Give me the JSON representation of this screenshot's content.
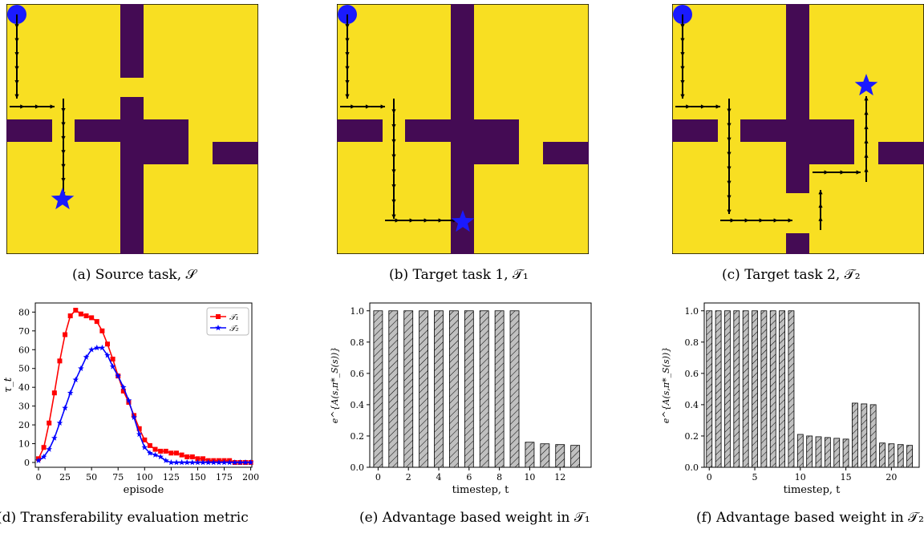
{
  "captions": {
    "a": "(a) Source task, 𝒮",
    "b": "(b) Target task 1, 𝒯₁",
    "c": "(c) Target task 2, 𝒯₂",
    "d": "(d) Transferability evaluation metric",
    "e": "(e) Advantage based weight in 𝒯₁",
    "f": "(f) Advantage based weight in 𝒯₂"
  },
  "colors": {
    "floor": "#f8df22",
    "wall": "#440b54",
    "agent": "#1a1aff",
    "arrow": "#000000",
    "bar": "#c0c0c0",
    "t1": "#ff0000",
    "t2": "#0000ff"
  },
  "icons": {
    "start": "blue-circle",
    "goal": "blue-star"
  },
  "chart_data": [
    {
      "type": "line",
      "xlabel": "episode",
      "ylabel": "τ_t",
      "xlim": [
        0,
        200
      ],
      "ylim": [
        0,
        80
      ],
      "xticks": [
        0,
        25,
        50,
        75,
        100,
        125,
        150,
        175,
        200
      ],
      "yticks": [
        0,
        10,
        20,
        30,
        40,
        50,
        60,
        70,
        80
      ],
      "legend": "top-right",
      "grid": false,
      "series": [
        {
          "name": "𝒯₁",
          "marker": "square",
          "x": [
            0,
            5,
            10,
            15,
            20,
            25,
            30,
            35,
            40,
            45,
            50,
            55,
            60,
            65,
            70,
            75,
            80,
            85,
            90,
            95,
            100,
            105,
            110,
            115,
            120,
            125,
            130,
            135,
            140,
            145,
            150,
            155,
            160,
            165,
            170,
            175,
            180,
            185,
            190,
            195,
            200
          ],
          "values": [
            2,
            8,
            21,
            37,
            54,
            68,
            78,
            81,
            79,
            78,
            77,
            75,
            70,
            63,
            55,
            46,
            38,
            32,
            25,
            18,
            12,
            9,
            7,
            6,
            6,
            5,
            5,
            4,
            3,
            3,
            2,
            2,
            1,
            1,
            1,
            1,
            1,
            0,
            0,
            0,
            0
          ]
        },
        {
          "name": "𝒯₂",
          "marker": "star",
          "x": [
            0,
            5,
            10,
            15,
            20,
            25,
            30,
            35,
            40,
            45,
            50,
            55,
            60,
            65,
            70,
            75,
            80,
            85,
            90,
            95,
            100,
            105,
            110,
            115,
            120,
            125,
            130,
            135,
            140,
            145,
            150,
            155,
            160,
            165,
            170,
            175,
            180,
            185,
            190,
            195,
            200
          ],
          "values": [
            1,
            3,
            7,
            13,
            21,
            29,
            37,
            44,
            50,
            56,
            60,
            61,
            61,
            57,
            51,
            46,
            40,
            33,
            24,
            15,
            8,
            5,
            4,
            3,
            1,
            0,
            0,
            0,
            0,
            0,
            0,
            0,
            0,
            0,
            0,
            0,
            0,
            0,
            0,
            0,
            0
          ]
        }
      ]
    },
    {
      "type": "bar",
      "xlabel": "timestep, t",
      "ylabel": "e^{A(s,π*_S(s))}",
      "xticks": [
        0,
        2,
        4,
        6,
        8,
        10,
        12
      ],
      "yticks": [
        0.0,
        0.2,
        0.4,
        0.6,
        0.8,
        1.0
      ],
      "ylim": [
        0,
        1.05
      ],
      "categories": [
        0,
        1,
        2,
        3,
        4,
        5,
        6,
        7,
        8,
        9,
        10,
        11,
        12,
        13
      ],
      "values": [
        1.0,
        1.0,
        1.0,
        1.0,
        1.0,
        1.0,
        1.0,
        1.0,
        1.0,
        1.0,
        0.16,
        0.15,
        0.145,
        0.14
      ]
    },
    {
      "type": "bar",
      "xlabel": "timestep, t",
      "ylabel": "e^{A(s,π*_S(s))}",
      "xticks": [
        0,
        5,
        10,
        15,
        20
      ],
      "yticks": [
        0.0,
        0.2,
        0.4,
        0.6,
        0.8,
        1.0
      ],
      "ylim": [
        0,
        1.05
      ],
      "categories": [
        0,
        1,
        2,
        3,
        4,
        5,
        6,
        7,
        8,
        9,
        10,
        11,
        12,
        13,
        14,
        15,
        16,
        17,
        18,
        19,
        20,
        21,
        22
      ],
      "values": [
        1.0,
        1.0,
        1.0,
        1.0,
        1.0,
        1.0,
        1.0,
        1.0,
        1.0,
        1.0,
        0.21,
        0.2,
        0.195,
        0.19,
        0.185,
        0.18,
        0.41,
        0.405,
        0.4,
        0.155,
        0.15,
        0.145,
        0.14
      ]
    }
  ]
}
